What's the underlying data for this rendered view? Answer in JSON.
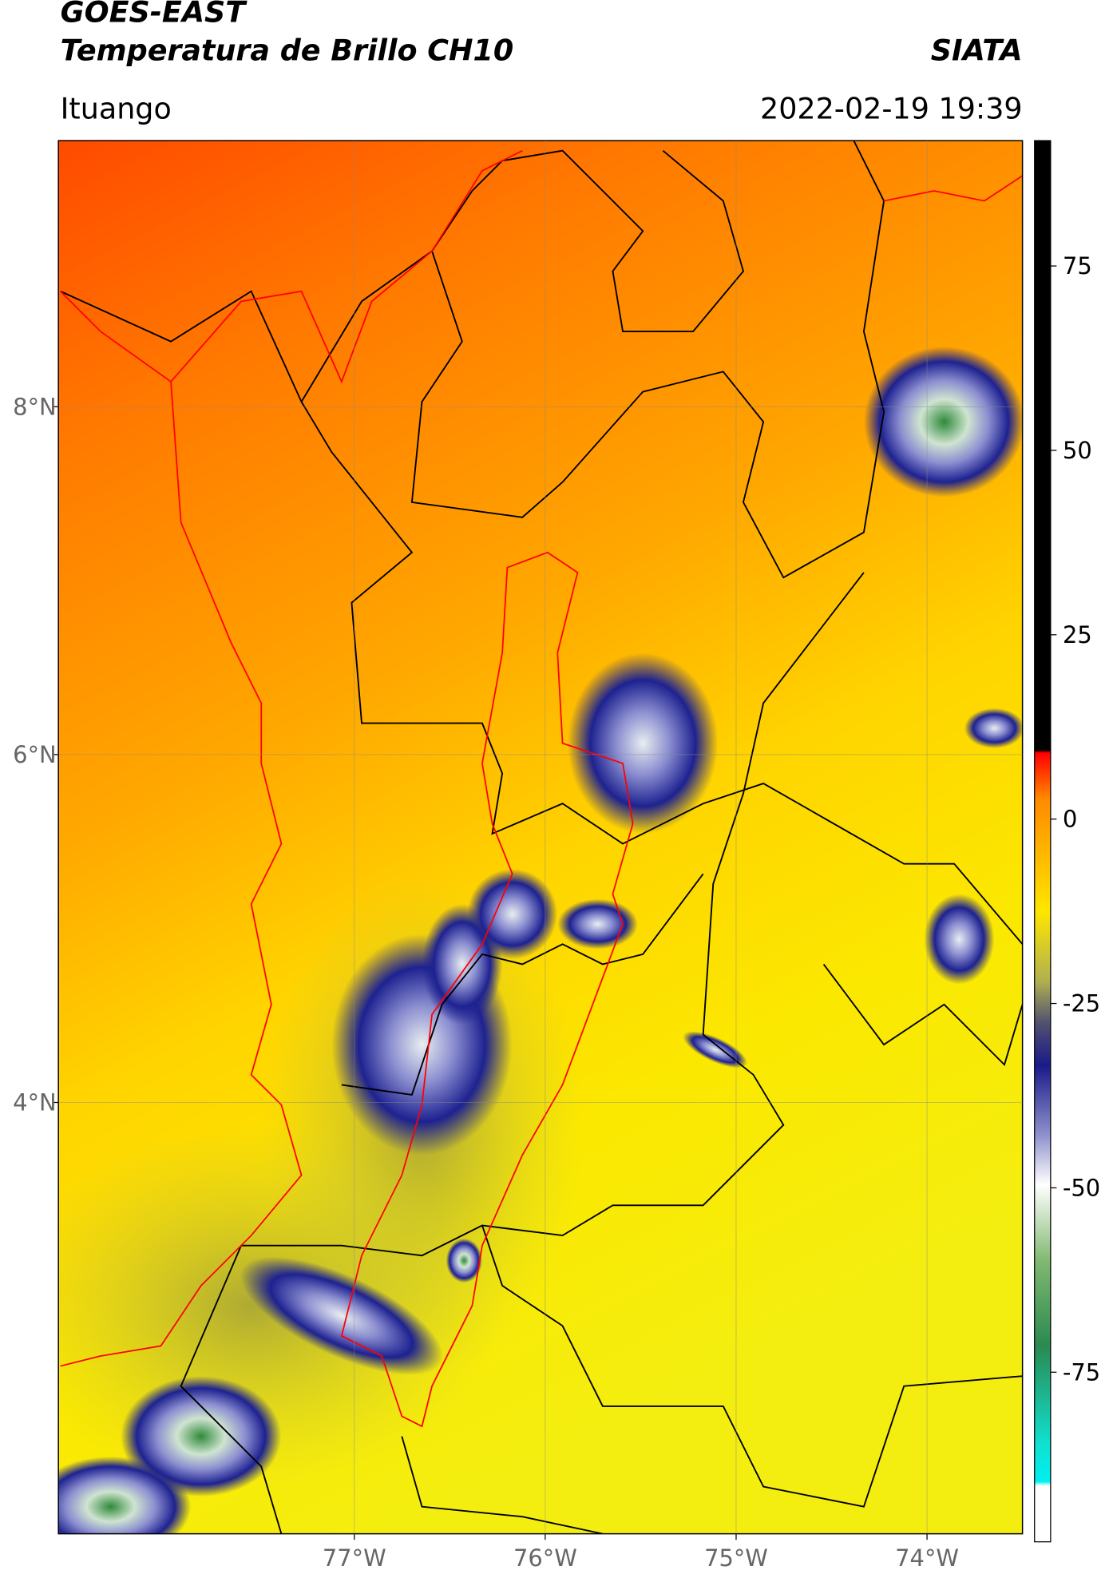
{
  "header": {
    "title": "GOES-EAST",
    "subtitle": "Temperatura de Brillo CH10",
    "organization": "SIATA",
    "region": "Ituango",
    "datetime": "2022-02-19 19:39"
  },
  "map": {
    "xlim": [
      -78.55,
      -73.5
    ],
    "ylim": [
      1.52,
      9.53
    ],
    "xticks": [
      {
        "value": -77,
        "label": "77°W"
      },
      {
        "value": -76,
        "label": "76°W"
      },
      {
        "value": -75,
        "label": "75°W"
      },
      {
        "value": -74,
        "label": "74°W"
      }
    ],
    "yticks": [
      {
        "value": 8,
        "label": "8°N"
      },
      {
        "value": 6,
        "label": "6°N"
      },
      {
        "value": 4,
        "label": "4°N"
      }
    ]
  },
  "colorbar": {
    "lim": [
      -98,
      92
    ],
    "ticks": [
      75,
      50,
      25,
      0,
      -25,
      -50,
      -75
    ]
  }
}
